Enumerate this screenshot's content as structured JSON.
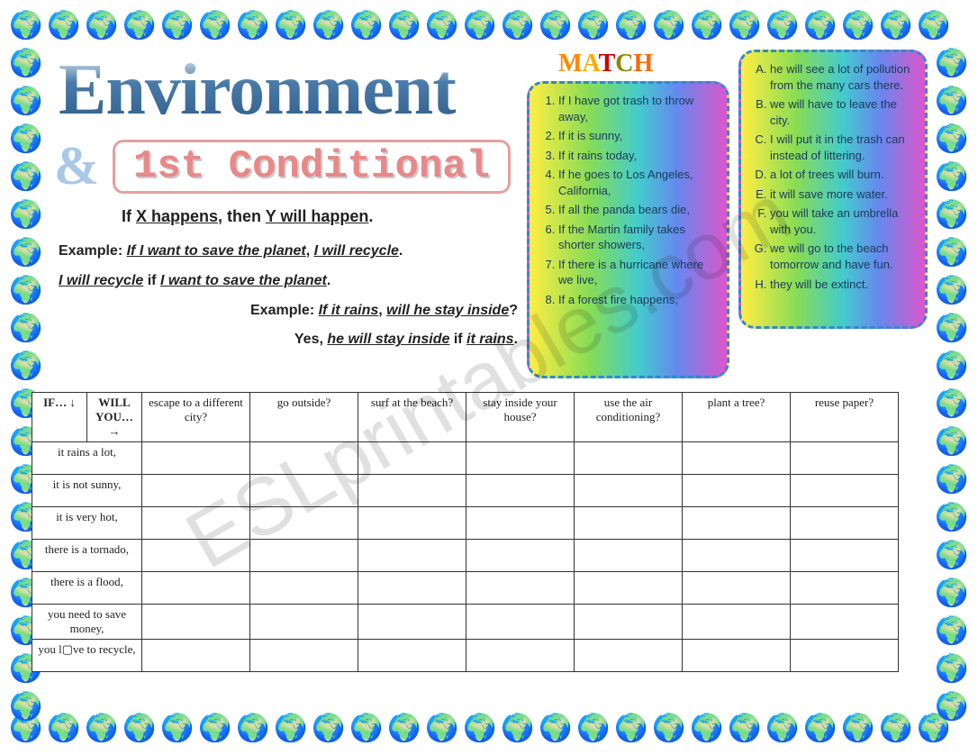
{
  "watermark": "ESLprintables.com",
  "title": "Environment",
  "ampersand": "&",
  "conditional_label": "1st Conditional",
  "rule": {
    "prefix": "If ",
    "x": "X happens",
    "mid": ", then ",
    "y": "Y will happen",
    "suffix": "."
  },
  "examples": {
    "ex1_label": "Example: ",
    "ex1a": "If ",
    "ex1b": "I want to save the planet",
    "ex1c": ", ",
    "ex1d": "I will recycle",
    "ex1e": ".",
    "ex2a": "I will recycle",
    "ex2b": " if ",
    "ex2c": "I want to save the planet",
    "ex2d": ".",
    "ex3_label": "Example: ",
    "ex3a": "If ",
    "ex3b": "it rains",
    "ex3c": ", ",
    "ex3d": "will he stay inside",
    "ex3e": "?",
    "ex4a": "Yes, ",
    "ex4b": "he will stay inside",
    "ex4c": " if ",
    "ex4d": "it rains",
    "ex4e": "."
  },
  "match_label": [
    "M",
    "A",
    "T",
    "C",
    "H"
  ],
  "left_list": [
    "If I have got trash to throw away,",
    "If it is sunny,",
    "If it rains today,",
    "If he goes to Los Angeles, California,",
    "If all the panda bears die,",
    "If the Martin family takes shorter showers,",
    "If there is a hurricane where we live,",
    "If a forest fire happens,"
  ],
  "right_list": [
    "he will see a lot of pollution from the many cars there.",
    "we will have to leave the city.",
    "I will put it in the trash can instead of littering.",
    "a lot of trees will burn.",
    "it will save more water.",
    "you will take an umbrella with you.",
    "we will go to the beach tomorrow and have fun.",
    "they will be extinct."
  ],
  "table": {
    "if_header": "IF… ↓",
    "will_header": "WILL YOU… →",
    "cols": [
      "escape to a different city?",
      "go outside?",
      "surf at the beach?",
      "stay inside your house?",
      "use the air conditioning?",
      "plant a tree?",
      "reuse paper?"
    ],
    "rows": [
      "it rains a lot,",
      "it is not sunny,",
      "it is very hot,",
      "there is a tornado,",
      "there is a flood,",
      "you need to save money,",
      "you l▢ve to recycle,"
    ]
  },
  "colors": {
    "border_dash": "#3388cc",
    "title_top": "#ffffff",
    "title_bottom": "#2d5a8a",
    "cond_border": "#e4a0a0",
    "cond_text": "#e88888"
  }
}
